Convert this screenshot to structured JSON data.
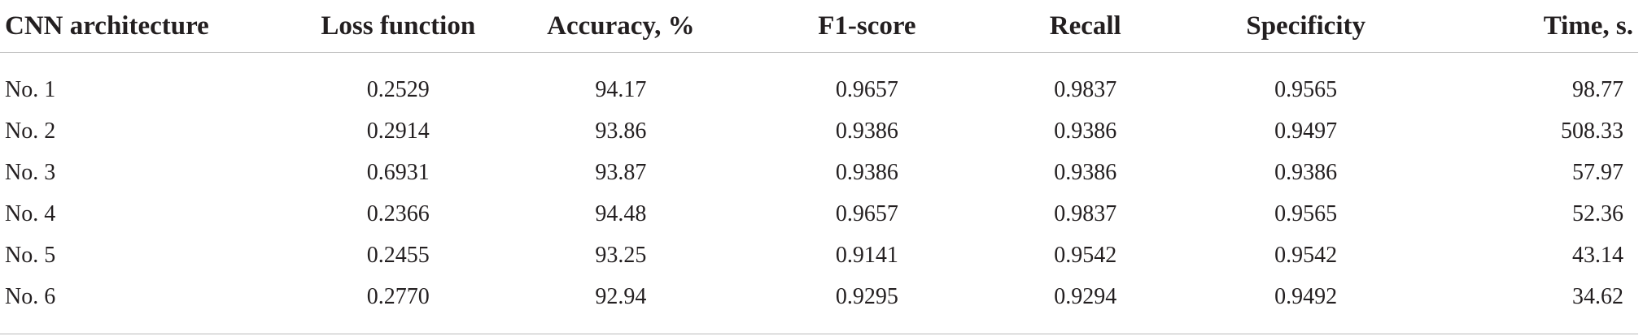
{
  "table": {
    "headers": [
      "CNN architecture",
      "Loss function",
      "Accuracy, %",
      "F1-score",
      "Recall",
      "Specificity",
      "Time, s."
    ],
    "rows": [
      [
        "No. 1",
        "0.2529",
        "94.17",
        "0.9657",
        "0.9837",
        "0.9565",
        "98.77"
      ],
      [
        "No. 2",
        "0.2914",
        "93.86",
        "0.9386",
        "0.9386",
        "0.9497",
        "508.33"
      ],
      [
        "No. 3",
        "0.6931",
        "93.87",
        "0.9386",
        "0.9386",
        "0.9386",
        "57.97"
      ],
      [
        "No. 4",
        "0.2366",
        "94.48",
        "0.9657",
        "0.9837",
        "0.9565",
        "52.36"
      ],
      [
        "No. 5",
        "0.2455",
        "93.25",
        "0.9141",
        "0.9542",
        "0.9542",
        "43.14"
      ],
      [
        "No. 6",
        "0.2770",
        "92.94",
        "0.9295",
        "0.9294",
        "0.9492",
        "34.62"
      ]
    ]
  }
}
